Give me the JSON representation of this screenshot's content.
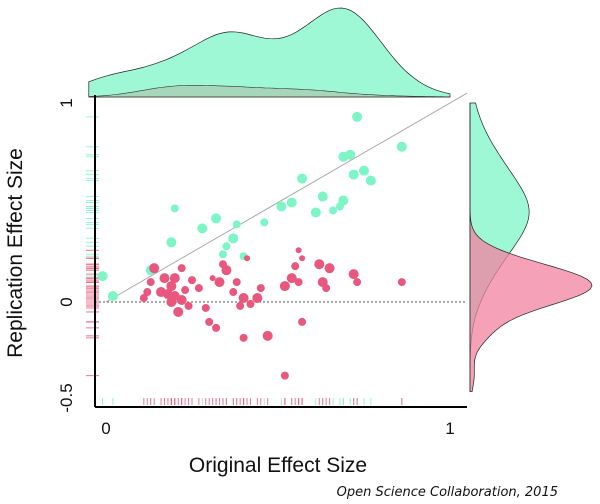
{
  "chart_data": {
    "type": "scatter",
    "title": "",
    "xlabel": "Original Effect Size",
    "ylabel": "Replication Effect Size",
    "credit": "Open Science Collaboration, 2015",
    "xlim": [
      0,
      1
    ],
    "ylim": [
      -0.5,
      1
    ],
    "x_ticks": [
      "0",
      "1"
    ],
    "y_ticks": [
      "-0.5",
      "0",
      "1"
    ],
    "reference_lines": [
      "diagonal y = x",
      "horizontal dotted y = 0"
    ],
    "colors": {
      "green": "#7df5c7",
      "pink": "#e8587e",
      "axis": "#000000"
    },
    "series": [
      {
        "color": "green",
        "points": [
          {
            "x": -0.01,
            "y": 0.13,
            "s": 5
          },
          {
            "x": 0.02,
            "y": 0.03,
            "s": 5
          },
          {
            "x": 0.13,
            "y": 0.16,
            "s": 5
          },
          {
            "x": 0.2,
            "y": 0.47,
            "s": 4
          },
          {
            "x": 0.19,
            "y": 0.3,
            "s": 5
          },
          {
            "x": 0.28,
            "y": 0.37,
            "s": 5
          },
          {
            "x": 0.32,
            "y": 0.42,
            "s": 5
          },
          {
            "x": 0.34,
            "y": 0.24,
            "s": 4
          },
          {
            "x": 0.35,
            "y": 0.28,
            "s": 4
          },
          {
            "x": 0.37,
            "y": 0.32,
            "s": 5
          },
          {
            "x": 0.38,
            "y": 0.39,
            "s": 4
          },
          {
            "x": 0.4,
            "y": 0.23,
            "s": 4
          },
          {
            "x": 0.46,
            "y": 0.4,
            "s": 4
          },
          {
            "x": 0.51,
            "y": 0.48,
            "s": 5
          },
          {
            "x": 0.54,
            "y": 0.5,
            "s": 5
          },
          {
            "x": 0.57,
            "y": 0.62,
            "s": 5
          },
          {
            "x": 0.61,
            "y": 0.45,
            "s": 5
          },
          {
            "x": 0.63,
            "y": 0.53,
            "s": 5
          },
          {
            "x": 0.66,
            "y": 0.46,
            "s": 4
          },
          {
            "x": 0.68,
            "y": 0.48,
            "s": 4
          },
          {
            "x": 0.69,
            "y": 0.51,
            "s": 5
          },
          {
            "x": 0.69,
            "y": 0.73,
            "s": 5
          },
          {
            "x": 0.71,
            "y": 0.74,
            "s": 5
          },
          {
            "x": 0.72,
            "y": 0.64,
            "s": 5
          },
          {
            "x": 0.73,
            "y": 0.93,
            "s": 5
          },
          {
            "x": 0.75,
            "y": 0.66,
            "s": 5
          },
          {
            "x": 0.77,
            "y": 0.61,
            "s": 5
          },
          {
            "x": 0.86,
            "y": 0.78,
            "s": 5
          }
        ]
      },
      {
        "color": "pink",
        "points": [
          {
            "x": 0.11,
            "y": 0.02,
            "s": 4
          },
          {
            "x": 0.12,
            "y": 0.05,
            "s": 4
          },
          {
            "x": 0.13,
            "y": 0.1,
            "s": 4
          },
          {
            "x": 0.14,
            "y": 0.17,
            "s": 5
          },
          {
            "x": 0.16,
            "y": 0.05,
            "s": 5
          },
          {
            "x": 0.17,
            "y": 0.12,
            "s": 5
          },
          {
            "x": 0.18,
            "y": 0.04,
            "s": 5
          },
          {
            "x": 0.19,
            "y": 0.0,
            "s": 5
          },
          {
            "x": 0.19,
            "y": 0.08,
            "s": 5
          },
          {
            "x": 0.2,
            "y": 0.12,
            "s": 5
          },
          {
            "x": 0.2,
            "y": 0.03,
            "s": 5
          },
          {
            "x": 0.21,
            "y": -0.05,
            "s": 5
          },
          {
            "x": 0.22,
            "y": 0.17,
            "s": 4
          },
          {
            "x": 0.22,
            "y": 0.01,
            "s": 5
          },
          {
            "x": 0.23,
            "y": 0.06,
            "s": 4
          },
          {
            "x": 0.24,
            "y": -0.02,
            "s": 4
          },
          {
            "x": 0.25,
            "y": 0.11,
            "s": 4
          },
          {
            "x": 0.27,
            "y": 0.07,
            "s": 4
          },
          {
            "x": 0.29,
            "y": -0.03,
            "s": 4
          },
          {
            "x": 0.3,
            "y": -0.1,
            "s": 4
          },
          {
            "x": 0.31,
            "y": 0.12,
            "s": 3
          },
          {
            "x": 0.32,
            "y": -0.13,
            "s": 4
          },
          {
            "x": 0.33,
            "y": 0.1,
            "s": 5
          },
          {
            "x": 0.34,
            "y": 0.19,
            "s": 4
          },
          {
            "x": 0.35,
            "y": 0.16,
            "s": 5
          },
          {
            "x": 0.37,
            "y": 0.05,
            "s": 4
          },
          {
            "x": 0.38,
            "y": 0.1,
            "s": 4
          },
          {
            "x": 0.39,
            "y": -0.02,
            "s": 4
          },
          {
            "x": 0.4,
            "y": 0.02,
            "s": 5
          },
          {
            "x": 0.4,
            "y": -0.18,
            "s": 4
          },
          {
            "x": 0.41,
            "y": 0.22,
            "s": 3
          },
          {
            "x": 0.42,
            "y": -0.01,
            "s": 4
          },
          {
            "x": 0.44,
            "y": 0.02,
            "s": 5
          },
          {
            "x": 0.45,
            "y": 0.07,
            "s": 4
          },
          {
            "x": 0.47,
            "y": -0.17,
            "s": 5
          },
          {
            "x": 0.52,
            "y": 0.08,
            "s": 5
          },
          {
            "x": 0.54,
            "y": 0.12,
            "s": 5
          },
          {
            "x": 0.55,
            "y": 0.18,
            "s": 4
          },
          {
            "x": 0.56,
            "y": 0.26,
            "s": 3
          },
          {
            "x": 0.57,
            "y": 0.22,
            "s": 3
          },
          {
            "x": 0.56,
            "y": 0.1,
            "s": 4
          },
          {
            "x": 0.57,
            "y": -0.1,
            "s": 4
          },
          {
            "x": 0.52,
            "y": -0.37,
            "s": 4
          },
          {
            "x": 0.62,
            "y": 0.19,
            "s": 5
          },
          {
            "x": 0.63,
            "y": 0.1,
            "s": 5
          },
          {
            "x": 0.64,
            "y": 0.07,
            "s": 4
          },
          {
            "x": 0.65,
            "y": 0.17,
            "s": 5
          },
          {
            "x": 0.72,
            "y": 0.14,
            "s": 5
          },
          {
            "x": 0.73,
            "y": 0.1,
            "s": 4
          },
          {
            "x": 0.86,
            "y": 0.1,
            "s": 4
          }
        ]
      }
    ]
  }
}
